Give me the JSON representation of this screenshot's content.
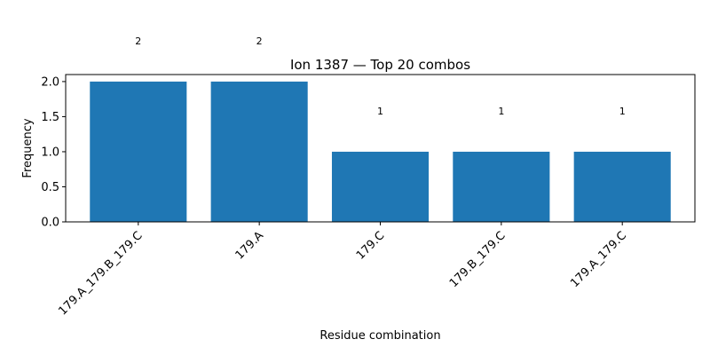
{
  "chart_data": {
    "type": "bar",
    "title": "Ion 1387 — Top 20 combos",
    "xlabel": "Residue combination",
    "ylabel": "Frequency",
    "categories": [
      "179.A_179.B_179.C",
      "179.A",
      "179.C",
      "179.B_179.C",
      "179.A_179.C"
    ],
    "values": [
      2,
      2,
      1,
      1,
      1
    ],
    "data_labels": [
      "2",
      "2",
      "1",
      "1",
      "1"
    ],
    "ylim": [
      0,
      2.1
    ],
    "yticks": [
      0.0,
      0.5,
      1.0,
      1.5,
      2.0
    ],
    "ytick_labels": [
      "0.0",
      "0.5",
      "1.0",
      "1.5",
      "2.0"
    ],
    "bar_color": "#1f77b4",
    "grid": false,
    "legend": "none"
  }
}
